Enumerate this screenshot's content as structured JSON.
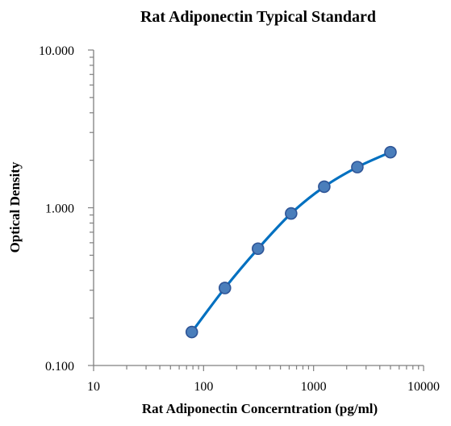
{
  "chart_data": {
    "type": "scatter",
    "title": "Rat Adiponectin Typical Standard",
    "xlabel": "Rat Adiponectin Concerntration (pg/ml)",
    "ylabel": "Optical Density",
    "x_scale": "log",
    "y_scale": "log",
    "xlim": [
      10,
      10000
    ],
    "ylim": [
      0.1,
      10
    ],
    "x_ticks": [
      "10",
      "100",
      "1000",
      "10000"
    ],
    "y_ticks": [
      "0.100",
      "1.000",
      "10.000"
    ],
    "grid": false,
    "legend": "none",
    "series": [
      {
        "x": [
          78.125,
          156.25,
          312.5,
          625,
          1250,
          2500,
          5000
        ],
        "y": [
          0.163,
          0.31,
          0.55,
          0.92,
          1.36,
          1.81,
          2.25
        ],
        "color": "#4a7ebb",
        "line_color": "#0070c0"
      }
    ]
  }
}
